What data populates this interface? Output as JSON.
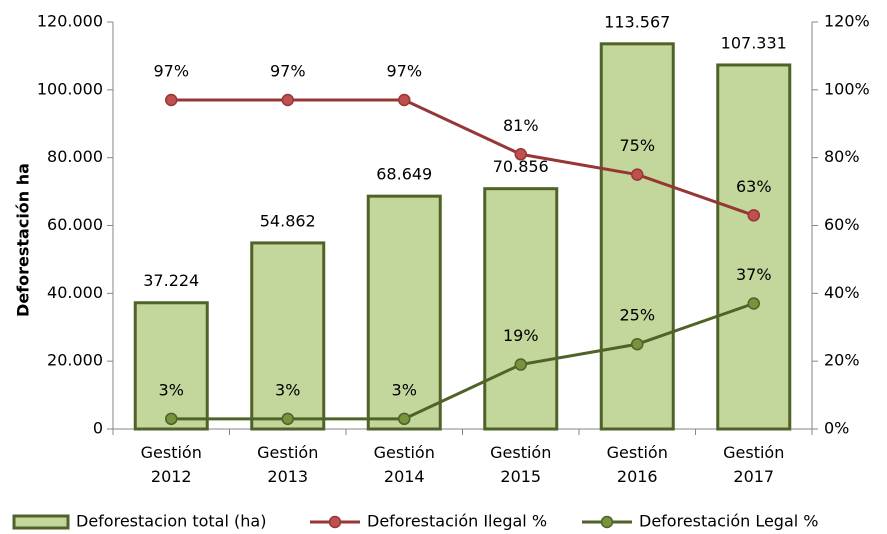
{
  "chart_data": {
    "type": "bar",
    "y_label": "Deforestación ha",
    "categories": [
      "Gestión 2012",
      "Gestión 2013",
      "Gestión 2014",
      "Gestión 2015",
      "Gestión 2016",
      "Gestión 2017"
    ],
    "ylim": [
      0,
      120000
    ],
    "yticks": [
      0,
      {
        "value": 20000,
        "label": "20.000"
      },
      {
        "value": 40000,
        "label": "40.000"
      },
      {
        "value": 60000,
        "label": "60.000"
      },
      {
        "value": 80000,
        "label": "80.000"
      },
      {
        "value": 100000,
        "label": "100.000"
      },
      {
        "value": 120000,
        "label": "120.000"
      }
    ],
    "y2lim": [
      0,
      120
    ],
    "y2ticks": [
      {
        "value": 0,
        "label": "0%"
      },
      {
        "value": 20,
        "label": "20%"
      },
      {
        "value": 40,
        "label": "40%"
      },
      {
        "value": 60,
        "label": "60%"
      },
      {
        "value": 80,
        "label": "80%"
      },
      {
        "value": 100,
        "label": "100%"
      },
      {
        "value": 120,
        "label": "120%"
      }
    ],
    "grid": false,
    "legend": "bottom",
    "series": [
      {
        "name": "Deforestacion total (ha)",
        "type": "bar",
        "color": "#c3d69b",
        "edge_color": "#4f6228",
        "values": [
          37224,
          54862,
          68649,
          70856,
          113567,
          107331
        ],
        "value_labels": [
          "37.224",
          "54.862",
          "68.649",
          "70.856",
          "113.567",
          "107.331"
        ]
      },
      {
        "name": "Deforestación Ilegal %",
        "type": "line",
        "axis": "y2",
        "color": "#953735",
        "marker_color": "#c0504d",
        "values": [
          97,
          97,
          97,
          81,
          75,
          63
        ],
        "value_labels": [
          "97%",
          "97%",
          "97%",
          "81%",
          "75%",
          "63%"
        ]
      },
      {
        "name": "Deforestación Legal %",
        "type": "line",
        "axis": "y2",
        "color": "#4f6228",
        "marker_color": "#77933c",
        "values": [
          3,
          3,
          3,
          19,
          25,
          37
        ],
        "value_labels": [
          "3%",
          "3%",
          "3%",
          "19%",
          "25%",
          "37%"
        ]
      }
    ]
  }
}
